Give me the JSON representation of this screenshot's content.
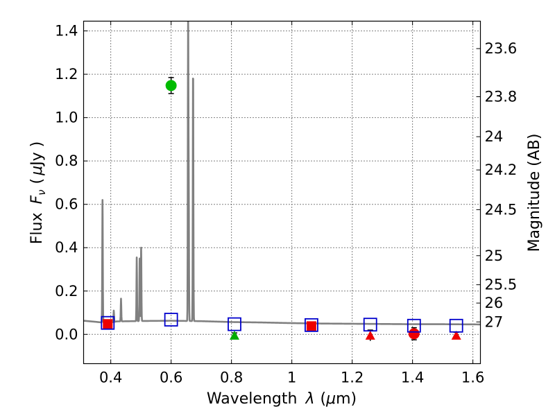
{
  "chart_data": {
    "type": "scatter",
    "xlabel_prefix": "Wavelength",
    "xlabel_symbol": "λ",
    "xlabel_unit_open": "(",
    "xlabel_unit_mu": "μ",
    "xlabel_unit_rest": "m)",
    "ylabel_prefix": "Flux",
    "ylabel_symbol": "F",
    "ylabel_subscript": "ν",
    "ylabel_unit_open": "(",
    "ylabel_unit_mu": "μ",
    "ylabel_unit_rest": "Jy )",
    "y2label": "Magnitude (AB)",
    "xlim": [
      0.31,
      1.625
    ],
    "ylim": [
      -0.135,
      1.445
    ],
    "grid": true,
    "xticks": [
      0.4,
      0.6,
      0.8,
      1.0,
      1.2,
      1.4,
      1.6
    ],
    "xtick_labels": [
      "0.4",
      "0.6",
      "0.8",
      "1",
      "1.2",
      "1.4",
      "1.6"
    ],
    "yticks": [
      0.0,
      0.2,
      0.4,
      0.6,
      0.8,
      1.0,
      1.2,
      1.4
    ],
    "ytick_labels": [
      "0.0",
      "0.2",
      "0.4",
      "0.6",
      "0.8",
      "1.0",
      "1.2",
      "1.4"
    ],
    "y2ticks": [
      {
        "label": "23.6",
        "flux": 1.3183
      },
      {
        "label": "23.8",
        "flux": 1.0965
      },
      {
        "label": "24",
        "flux": 0.912
      },
      {
        "label": "24.2",
        "flux": 0.7586
      },
      {
        "label": "24.5",
        "flux": 0.5754
      },
      {
        "label": "25",
        "flux": 0.3631
      },
      {
        "label": "25.5",
        "flux": 0.2291
      },
      {
        "label": "26",
        "flux": 0.1445
      },
      {
        "label": "27",
        "flux": 0.0575
      }
    ],
    "colors": {
      "model": "#808080",
      "model_photometry": "#0000cc",
      "detection_green": "#00bb00",
      "detection_red": "#ee0000",
      "upper_limit_red": "#ee0000",
      "upper_limit_green": "#00aa00",
      "errorbar": "#000000"
    },
    "model_spectrum": {
      "name": "SED model",
      "continuum": [
        [
          0.31,
          0.063
        ],
        [
          0.35,
          0.058
        ],
        [
          0.39,
          0.052
        ],
        [
          0.42,
          0.06
        ],
        [
          0.47,
          0.061
        ],
        [
          0.52,
          0.062
        ],
        [
          0.6,
          0.063
        ],
        [
          0.7,
          0.061
        ],
        [
          0.8,
          0.057
        ],
        [
          0.9,
          0.055
        ],
        [
          1.0,
          0.052
        ],
        [
          1.1,
          0.05
        ],
        [
          1.2,
          0.049
        ],
        [
          1.3,
          0.048
        ],
        [
          1.4,
          0.047
        ],
        [
          1.5,
          0.047
        ],
        [
          1.625,
          0.046
        ]
      ],
      "emission_lines": [
        {
          "x": 0.3727,
          "peak": 0.62
        },
        {
          "x": 0.41,
          "peak": 0.11
        },
        {
          "x": 0.434,
          "peak": 0.165
        },
        {
          "x": 0.4861,
          "peak": 0.355
        },
        {
          "x": 0.4959,
          "peak": 0.35
        },
        {
          "x": 0.5007,
          "peak": 0.4
        },
        {
          "x": 0.6563,
          "peak": 1.445
        },
        {
          "x": 0.6583,
          "peak": 0.66
        },
        {
          "x": 0.6725,
          "peak": 0.685
        },
        {
          "x": 0.6731,
          "peak": 0.68
        }
      ]
    },
    "model_photometry": [
      {
        "x": 0.39,
        "y": 0.053
      },
      {
        "x": 0.6,
        "y": 0.068
      },
      {
        "x": 0.81,
        "y": 0.047
      },
      {
        "x": 1.065,
        "y": 0.043
      },
      {
        "x": 1.26,
        "y": 0.045
      },
      {
        "x": 1.405,
        "y": 0.04
      },
      {
        "x": 1.545,
        "y": 0.04
      }
    ],
    "observed_detections": [
      {
        "x": 0.6,
        "y": 1.148,
        "err": 0.037,
        "color": "green"
      },
      {
        "x": 1.405,
        "y": 0.003,
        "err": 0.028,
        "color": "red"
      },
      {
        "x": 0.39,
        "y": 0.048,
        "err": 0.0,
        "color": "red"
      },
      {
        "x": 1.065,
        "y": 0.038,
        "err": 0.0,
        "color": "red"
      }
    ],
    "upper_limits": [
      {
        "x": 0.81,
        "y": -0.005,
        "err": 0.012,
        "color": "green"
      },
      {
        "x": 1.26,
        "y": -0.005,
        "err": 0.025,
        "color": "red"
      },
      {
        "x": 1.545,
        "y": -0.005,
        "err": 0.015,
        "color": "red"
      }
    ]
  }
}
